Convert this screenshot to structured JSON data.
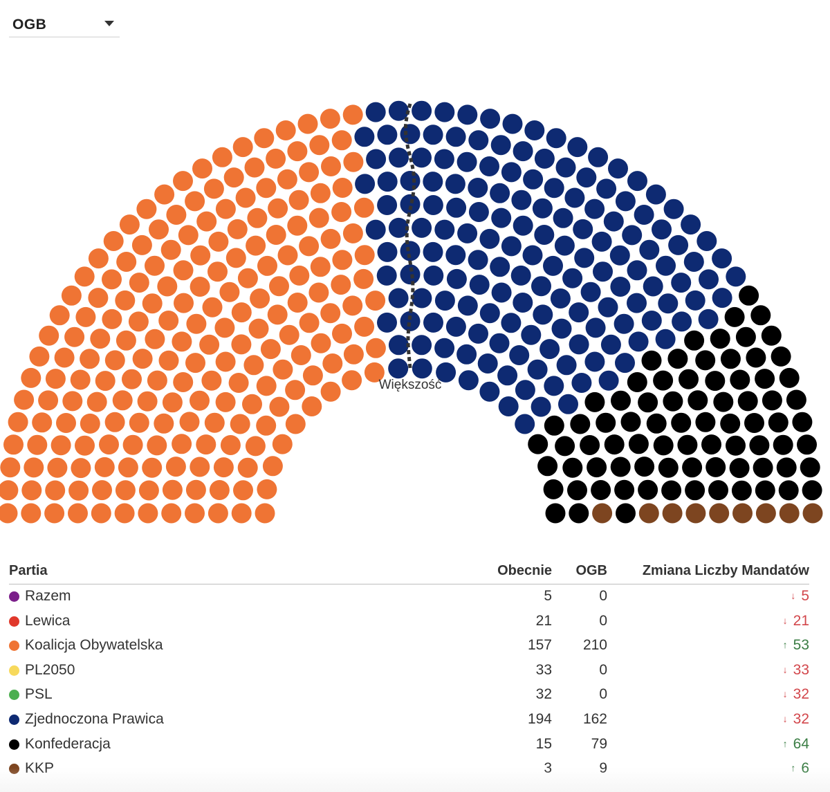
{
  "selector": {
    "value": "OGB"
  },
  "majority_label": "Większość",
  "colors": {
    "Razem": "#7b1f8a",
    "Lewica": "#e0382b",
    "Koalicja Obywatelska": "#ef7434",
    "PL2050": "#f7d95c",
    "PSL": "#4caf50",
    "Zjednoczona Prawica": "#0e2a72",
    "Konfederacja": "#000000",
    "KKP": "#7d4520",
    "increase": "#3a7d44",
    "decrease": "#d2464b",
    "majority_line": "#333333"
  },
  "chart_data": {
    "type": "parliament",
    "scenario": "OGB",
    "total_seats": 460,
    "seat_order": [
      "Koalicja Obywatelska",
      "Zjednoczona Prawica",
      "Konfederacja",
      "KKP"
    ],
    "seats": [
      {
        "party": "Koalicja Obywatelska",
        "value": 210
      },
      {
        "party": "Zjednoczona Prawica",
        "value": 162
      },
      {
        "party": "Konfederacja",
        "value": 79
      },
      {
        "party": "KKP",
        "value": 9
      }
    ],
    "majority": 231
  },
  "table": {
    "headers": {
      "party": "Partia",
      "current": "Obecnie",
      "ogb": "OGB",
      "change": "Zmiana Liczby Mandatów"
    },
    "rows": [
      {
        "party": "Razem",
        "current": "5",
        "ogb": "0",
        "change_value": "5",
        "direction": "down",
        "arrow": "↓"
      },
      {
        "party": "Lewica",
        "current": "21",
        "ogb": "0",
        "change_value": "21",
        "direction": "down",
        "arrow": "↓"
      },
      {
        "party": "Koalicja Obywatelska",
        "current": "157",
        "ogb": "210",
        "change_value": "53",
        "direction": "up",
        "arrow": "↑"
      },
      {
        "party": "PL2050",
        "current": "33",
        "ogb": "0",
        "change_value": "33",
        "direction": "down",
        "arrow": "↓"
      },
      {
        "party": "PSL",
        "current": "32",
        "ogb": "0",
        "change_value": "32",
        "direction": "down",
        "arrow": "↓"
      },
      {
        "party": "Zjednoczona Prawica",
        "current": "194",
        "ogb": "162",
        "change_value": "32",
        "direction": "down",
        "arrow": "↓"
      },
      {
        "party": "Konfederacja",
        "current": "15",
        "ogb": "79",
        "change_value": "64",
        "direction": "up",
        "arrow": "↑"
      },
      {
        "party": "KKP",
        "current": "3",
        "ogb": "9",
        "change_value": "6",
        "direction": "up",
        "arrow": "↑"
      }
    ]
  }
}
